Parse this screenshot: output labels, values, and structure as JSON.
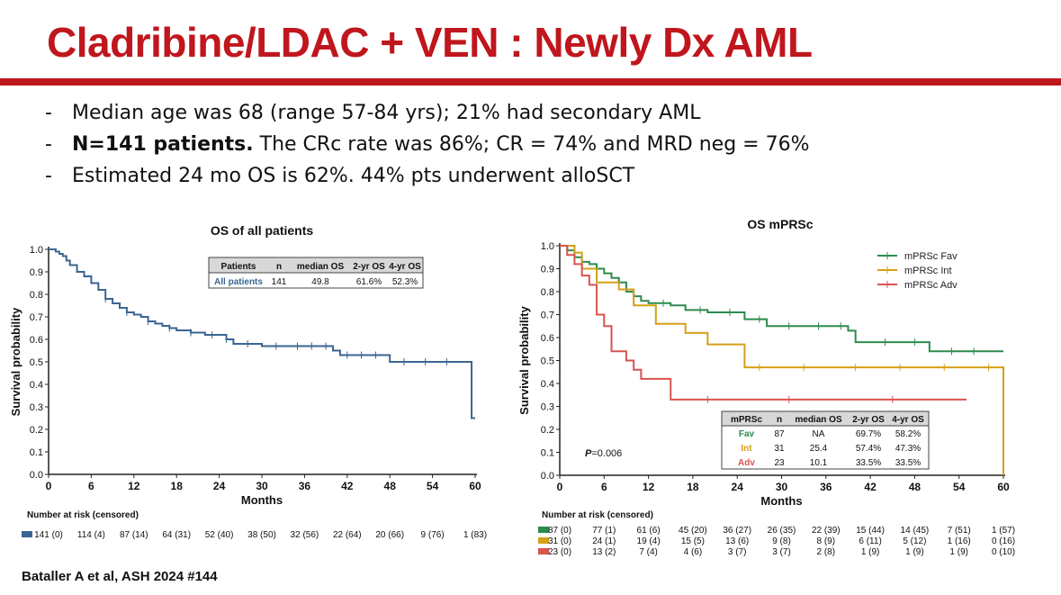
{
  "slide": {
    "title_bold": "Cladribine/LDAC + VEN :",
    "title_light": "Newly Dx AML",
    "bullets": [
      {
        "bold": "",
        "text": "Median age was 68 (range 57-84 yrs); 21% had secondary AML"
      },
      {
        "bold": "N=141 patients.",
        "text": " The CRc rate was 86%; CR = 74% and MRD neg = 76%"
      },
      {
        "bold": "",
        "text": "Estimated 24 mo OS is 62%.  44% pts underwent alloSCT"
      }
    ],
    "bullet_marker": "-",
    "citation": "Bataller A et al, ASH 2024 #144"
  },
  "chart_data": [
    {
      "type": "line",
      "subtype": "kaplan-meier",
      "title": "OS of all patients",
      "xlabel": "Months",
      "ylabel": "Survival probability",
      "xlim": [
        0,
        60
      ],
      "ylim": [
        0,
        1
      ],
      "xticks": [
        0,
        6,
        12,
        18,
        24,
        30,
        36,
        42,
        48,
        54,
        60
      ],
      "xtick_labels": [
        "0",
        "6",
        "12",
        "18",
        "24",
        "30",
        "36",
        "42",
        "48",
        "54",
        "60"
      ],
      "yticks": [
        0,
        0.1,
        0.2,
        0.3,
        0.4,
        0.5,
        0.6,
        0.7,
        0.8,
        0.9,
        1.0
      ],
      "ytick_labels": [
        "0.0",
        "0.1",
        "0.2",
        "0.3",
        "0.4",
        "0.5",
        "0.6",
        "0.7",
        "0.8",
        "0.9",
        "1.0"
      ],
      "series": [
        {
          "name": "All patients",
          "color": "#3a6592",
          "x": [
            0,
            1,
            1.5,
            2,
            2.5,
            3,
            4,
            5,
            6,
            7,
            8,
            9,
            10,
            11,
            12,
            13,
            14,
            15,
            16,
            17,
            18,
            20,
            22,
            25,
            26,
            30,
            36,
            40,
            41,
            48,
            59.5,
            59.5,
            60
          ],
          "y": [
            1.0,
            0.99,
            0.98,
            0.97,
            0.95,
            0.93,
            0.9,
            0.88,
            0.85,
            0.82,
            0.78,
            0.76,
            0.74,
            0.72,
            0.71,
            0.7,
            0.68,
            0.67,
            0.66,
            0.65,
            0.64,
            0.63,
            0.62,
            0.6,
            0.58,
            0.57,
            0.57,
            0.55,
            0.53,
            0.5,
            0.5,
            0.25,
            0.25
          ],
          "censor_x": [
            8,
            11,
            14,
            17,
            20,
            23,
            25,
            28,
            32,
            35,
            37,
            39,
            42,
            44,
            46,
            50,
            53,
            56
          ]
        }
      ],
      "table": {
        "headers": [
          "Patients",
          "n",
          "median OS",
          "2-yr OS",
          "4-yr OS"
        ],
        "rows": [
          [
            "All patients",
            "141",
            "49.8",
            "61.6%",
            "52.3%"
          ]
        ],
        "row_colors": [
          "#3a6592"
        ]
      },
      "risk_table": {
        "label": "Number at risk (censored)",
        "rows": [
          {
            "color": "#3a6592",
            "values": [
              "141 (0)",
              "114 (4)",
              "87 (14)",
              "64 (31)",
              "52 (40)",
              "38 (50)",
              "32 (56)",
              "22 (64)",
              "20 (66)",
              "9 (76)",
              "1 (83)"
            ]
          }
        ]
      }
    },
    {
      "type": "line",
      "subtype": "kaplan-meier",
      "title": "OS mPRSc",
      "xlabel": "Months",
      "ylabel": "Survival probability",
      "xlim": [
        0,
        60
      ],
      "ylim": [
        0,
        1
      ],
      "xticks": [
        0,
        6,
        12,
        18,
        24,
        30,
        36,
        42,
        48,
        54,
        60
      ],
      "xtick_labels": [
        "0",
        "6",
        "12",
        "18",
        "24",
        "30",
        "36",
        "42",
        "48",
        "54",
        "60"
      ],
      "yticks": [
        0,
        0.1,
        0.2,
        0.3,
        0.4,
        0.5,
        0.6,
        0.7,
        0.8,
        0.9,
        1.0
      ],
      "ytick_labels": [
        "0.0",
        "0.1",
        "0.2",
        "0.3",
        "0.4",
        "0.5",
        "0.6",
        "0.7",
        "0.8",
        "0.9",
        "1.0"
      ],
      "legend": {
        "position": "top-right",
        "entries": [
          "mPRSc Fav",
          "mPRSc Int",
          "mPRSc Adv"
        ]
      },
      "series": [
        {
          "name": "mPRSc Fav",
          "color": "#2e8b4f",
          "x": [
            0,
            1,
            2,
            3,
            4,
            5,
            6,
            7,
            8,
            9,
            10,
            11,
            12,
            15,
            17,
            20,
            25,
            28,
            39,
            40,
            50,
            60
          ],
          "y": [
            1.0,
            0.98,
            0.95,
            0.93,
            0.92,
            0.9,
            0.88,
            0.86,
            0.84,
            0.8,
            0.78,
            0.76,
            0.75,
            0.74,
            0.72,
            0.71,
            0.68,
            0.65,
            0.63,
            0.58,
            0.54,
            0.54
          ],
          "censor_x": [
            10,
            14,
            19,
            23,
            27,
            31,
            35,
            38,
            44,
            48,
            53,
            56
          ]
        },
        {
          "name": "mPRSc Int",
          "color": "#d4a017",
          "x": [
            0,
            2,
            3,
            5,
            8,
            10,
            13,
            17,
            20,
            25,
            60,
            60
          ],
          "y": [
            1.0,
            0.97,
            0.9,
            0.84,
            0.81,
            0.74,
            0.66,
            0.62,
            0.57,
            0.47,
            0.47,
            0.0
          ],
          "censor_x": [
            27,
            33,
            40,
            46,
            52,
            58
          ]
        },
        {
          "name": "mPRSc Adv",
          "color": "#d9534f",
          "x": [
            0,
            1,
            2,
            3,
            4,
            5,
            6,
            7,
            8,
            9,
            10,
            11,
            15,
            55
          ],
          "y": [
            1.0,
            0.96,
            0.92,
            0.87,
            0.83,
            0.7,
            0.65,
            0.54,
            0.54,
            0.5,
            0.46,
            0.42,
            0.33,
            0.33
          ],
          "censor_x": [
            20,
            31,
            45
          ]
        }
      ],
      "annotations": {
        "p_label": "P",
        "p_value": "=0.006"
      },
      "table": {
        "headers": [
          "mPRSc",
          "n",
          "median OS",
          "2-yr OS",
          "4-yr OS"
        ],
        "rows": [
          [
            "Fav",
            "87",
            "NA",
            "69.7%",
            "58.2%"
          ],
          [
            "Int",
            "31",
            "25.4",
            "57.4%",
            "47.3%"
          ],
          [
            "Adv",
            "23",
            "10.1",
            "33.5%",
            "33.5%"
          ]
        ],
        "row_colors": [
          "#2e8b4f",
          "#d4a017",
          "#d9534f"
        ]
      },
      "risk_table": {
        "label": "Number at risk (censored)",
        "rows": [
          {
            "color": "#2e8b4f",
            "values": [
              "87 (0)",
              "77 (1)",
              "61 (6)",
              "45 (20)",
              "36 (27)",
              "26 (35)",
              "22 (39)",
              "15 (44)",
              "14 (45)",
              "7 (51)",
              "1 (57)"
            ]
          },
          {
            "color": "#d4a017",
            "values": [
              "31 (0)",
              "24 (1)",
              "19 (4)",
              "15 (5)",
              "13 (6)",
              "9 (8)",
              "8 (9)",
              "6 (11)",
              "5 (12)",
              "1 (16)",
              "0 (16)"
            ]
          },
          {
            "color": "#d9534f",
            "values": [
              "23 (0)",
              "13 (2)",
              "7 (4)",
              "4 (6)",
              "3 (7)",
              "3 (7)",
              "2 (8)",
              "1 (9)",
              "1 (9)",
              "1 (9)",
              "0 (10)"
            ]
          }
        ]
      }
    }
  ]
}
